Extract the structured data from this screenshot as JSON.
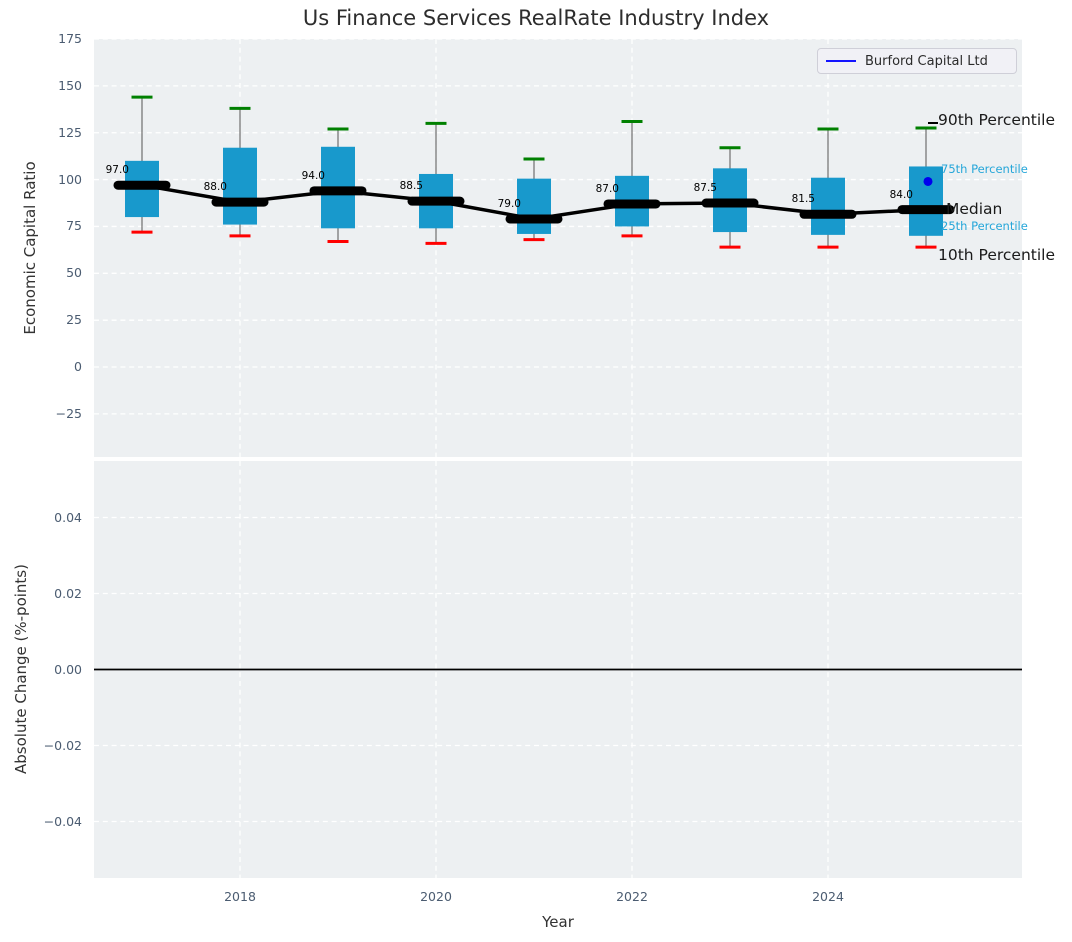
{
  "title": "Us Finance Services RealRate Industry Index",
  "legend": {
    "label": "Burford Capital Ltd",
    "line_color": "#1414ff"
  },
  "top_panel": {
    "ylabel": "Economic Capital Ratio"
  },
  "bottom_panel": {
    "ylabel": "Absolute Change (%-points)"
  },
  "x_axis": {
    "label": "Year",
    "tick_values": [
      2018,
      2020,
      2022,
      2024
    ],
    "tick_labels": [
      "2018",
      "2020",
      "2022",
      "2024"
    ]
  },
  "annotations": [
    {
      "id": "p90",
      "label": "90th Percentile",
      "size": "large",
      "color": "#1a1a1a"
    },
    {
      "id": "p75",
      "label": "75th Percentile",
      "size": "small",
      "color": "#25a6d9"
    },
    {
      "id": "median",
      "label": "Median",
      "size": "large",
      "color": "#1a1a1a"
    },
    {
      "id": "p25",
      "label": "25th Percentile",
      "size": "small",
      "color": "#25a6d9"
    },
    {
      "id": "p10",
      "label": "10th Percentile",
      "size": "large",
      "color": "#1a1a1a"
    }
  ],
  "colors": {
    "box_fill": "#1899cc",
    "whisker": "#787878",
    "cap_top": "#008000",
    "cap_bottom": "#ff0000",
    "median_line": "#000000",
    "burford_dot": "#0000ee",
    "panel_bg": "#edf0f2",
    "gridline": "#ffffff",
    "tick_text": "#4b5c71"
  },
  "chart_data": {
    "type": "box",
    "title": "Us Finance Services RealRate Industry Index",
    "xlabel": "Year",
    "top_ylabel": "Economic Capital Ratio",
    "bottom_ylabel": "Absolute Change (%-points)",
    "legend_entries": [
      "Burford Capital Ltd"
    ],
    "legend_position": "upper right",
    "grid": true,
    "years": [
      2017,
      2018,
      2019,
      2020,
      2021,
      2022,
      2023,
      2024,
      2025
    ],
    "boxes": {
      "p90": [
        144,
        138,
        127,
        130,
        111,
        131,
        117,
        127,
        127.5
      ],
      "p75": [
        110,
        117,
        117.5,
        103,
        100.5,
        102,
        106,
        101,
        107
      ],
      "median": [
        97.0,
        88.0,
        94.0,
        88.5,
        79.0,
        87.0,
        87.5,
        81.5,
        84.0
      ],
      "p25": [
        80,
        76,
        74,
        74,
        71,
        75,
        72,
        70.5,
        70
      ],
      "p10": [
        72,
        70,
        67,
        66,
        68,
        70,
        64,
        64,
        64
      ]
    },
    "median_labels": [
      "97.0",
      "88.0",
      "94.0",
      "88.5",
      "79.0",
      "87.0",
      "87.5",
      "81.5",
      "84.0"
    ],
    "burford_point": {
      "year": 2025,
      "value": 99
    },
    "top_axis": {
      "ylim": [
        -48,
        175
      ],
      "tick_values": [
        175,
        150,
        125,
        100,
        75,
        50,
        25,
        0,
        -25
      ],
      "tick_labels": [
        "175",
        "150",
        "125",
        "100",
        "75",
        "50",
        "25",
        "0",
        "−25"
      ]
    },
    "bottom_axis": {
      "ylim": [
        -0.055,
        0.055
      ],
      "tick_values": [
        0.04,
        0.02,
        0,
        -0.02,
        -0.04
      ],
      "tick_labels": [
        "0.04",
        "0.02",
        "0.00",
        "−0.02",
        "−0.04"
      ],
      "zero_line": true
    },
    "x_tick_values": [
      2018,
      2020,
      2022,
      2024
    ],
    "x_tick_labels": [
      "2018",
      "2020",
      "2022",
      "2024"
    ]
  }
}
